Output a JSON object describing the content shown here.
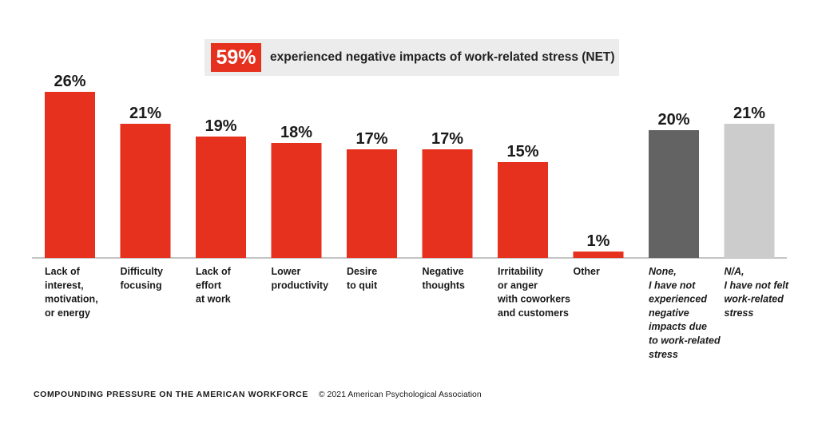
{
  "net": {
    "value": "59%",
    "label": "experienced negative impacts of work-related stress (NET)"
  },
  "footer": {
    "series_name": "COMPOUNDING PRESSURE ON THE AMERICAN WORKFORCE",
    "copyright": "© 2021 American Psychological Association"
  },
  "chart_data": {
    "type": "bar",
    "title": "",
    "xlabel": "",
    "ylabel": "",
    "ylim": [
      0,
      26
    ],
    "grid": false,
    "legend": "none",
    "categories": [
      "Lack of interest, motivation, or energy",
      "Difficulty focusing",
      "Lack of effort at work",
      "Lower productivity",
      "Desire to quit",
      "Negative thoughts",
      "Irritability or anger with coworkers and customers",
      "Other",
      "None, I have not experienced negative impacts due to work-related stress",
      "N/A, I have not felt work-related stress"
    ],
    "category_lines": [
      [
        "Lack of",
        "interest,",
        "motivation,",
        "or energy"
      ],
      [
        "Difficulty",
        "focusing"
      ],
      [
        "Lack of",
        "effort",
        "at work"
      ],
      [
        "Lower",
        "productivity"
      ],
      [
        "Desire",
        "to quit"
      ],
      [
        "Negative",
        "thoughts"
      ],
      [
        "Irritability",
        "or anger",
        "with coworkers",
        "and customers"
      ],
      [
        "Other"
      ],
      [
        "None,",
        "I have not",
        "experienced",
        "negative",
        "impacts due",
        "to work-related",
        "stress"
      ],
      [
        "N/A,",
        "I have not felt",
        "work-related",
        "stress"
      ]
    ],
    "values": [
      26,
      21,
      19,
      18,
      17,
      17,
      15,
      1,
      20,
      21
    ],
    "data_labels": [
      "26%",
      "21%",
      "19%",
      "18%",
      "17%",
      "17%",
      "15%",
      "1%",
      "20%",
      "21%"
    ],
    "colors": [
      "#e5311e",
      "#e5311e",
      "#e5311e",
      "#e5311e",
      "#e5311e",
      "#e5311e",
      "#e5311e",
      "#e5311e",
      "#636363",
      "#cccccc"
    ],
    "italic_labels": [
      false,
      false,
      false,
      false,
      false,
      false,
      false,
      false,
      true,
      true
    ]
  }
}
